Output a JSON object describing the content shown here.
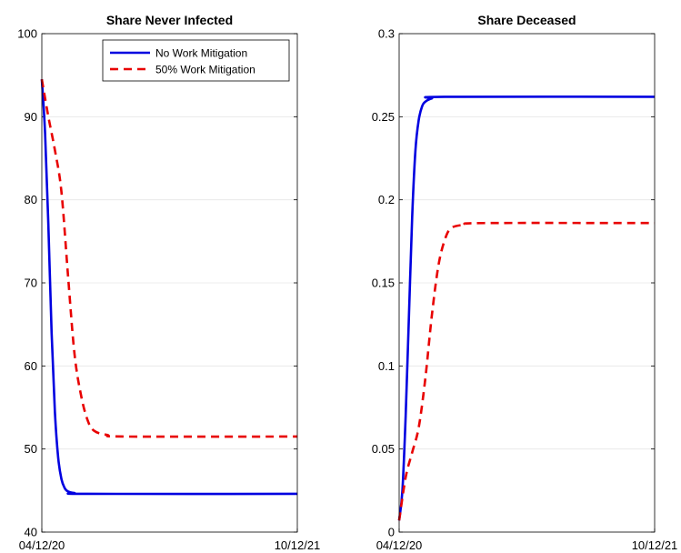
{
  "chart_data": [
    {
      "type": "line",
      "title": "Share Never Infected",
      "xlabel": "",
      "ylabel": "",
      "x_range": [
        "04/12/20",
        "10/12/21"
      ],
      "x_ticks": [
        "04/12/20",
        "10/12/21"
      ],
      "ylim": [
        40,
        100
      ],
      "y_ticks": [
        "40",
        "50",
        "60",
        "70",
        "80",
        "90",
        "100"
      ],
      "grid": "horizontal",
      "legend": "top-right",
      "series": [
        {
          "name": "No Work Mitigation",
          "color": "#0000e0",
          "style": "solid",
          "points": [
            [
              "04/12/20",
              94.5
            ],
            [
              "04/19/20",
              88.0
            ],
            [
              "04/26/20",
              77.0
            ],
            [
              "05/03/20",
              64.0
            ],
            [
              "05/10/20",
              54.5
            ],
            [
              "05/17/20",
              49.0
            ],
            [
              "05/24/20",
              46.4
            ],
            [
              "05/31/20",
              45.3
            ],
            [
              "06/07/20",
              44.9
            ],
            [
              "06/21/20",
              44.7
            ],
            [
              "07/19/20",
              44.6
            ],
            [
              "10/12/21",
              44.6
            ]
          ]
        },
        {
          "name": "50% Work Mitigation",
          "color": "#e80000",
          "style": "dashed",
          "points": [
            [
              "04/12/20",
              94.5
            ],
            [
              "04/26/20",
              90.0
            ],
            [
              "05/10/20",
              86.0
            ],
            [
              "05/24/20",
              81.0
            ],
            [
              "06/07/20",
              71.0
            ],
            [
              "06/21/20",
              61.5
            ],
            [
              "07/05/20",
              56.5
            ],
            [
              "07/19/20",
              53.5
            ],
            [
              "08/02/20",
              52.2
            ],
            [
              "08/30/20",
              51.7
            ],
            [
              "10/11/20",
              51.5
            ],
            [
              "10/12/21",
              51.5
            ]
          ]
        }
      ]
    },
    {
      "type": "line",
      "title": "Share Deceased",
      "xlabel": "",
      "ylabel": "",
      "x_range": [
        "04/12/20",
        "10/12/21"
      ],
      "x_ticks": [
        "04/12/20",
        "10/12/21"
      ],
      "ylim": [
        0,
        0.3
      ],
      "y_ticks": [
        "0",
        "0.05",
        "0.1",
        "0.15",
        "0.2",
        "0.25",
        "0.3"
      ],
      "grid": "horizontal",
      "legend": "none",
      "series": [
        {
          "name": "No Work Mitigation",
          "color": "#0000e0",
          "style": "solid",
          "points": [
            [
              "04/12/20",
              0.007
            ],
            [
              "04/19/20",
              0.025
            ],
            [
              "04/26/20",
              0.07
            ],
            [
              "05/03/20",
              0.13
            ],
            [
              "05/10/20",
              0.19
            ],
            [
              "05/17/20",
              0.23
            ],
            [
              "05/24/20",
              0.248
            ],
            [
              "05/31/20",
              0.256
            ],
            [
              "06/07/20",
              0.259
            ],
            [
              "06/21/20",
              0.261
            ],
            [
              "07/19/20",
              0.262
            ],
            [
              "10/12/21",
              0.262
            ]
          ]
        },
        {
          "name": "50% Work Mitigation",
          "color": "#e80000",
          "style": "dashed",
          "points": [
            [
              "04/12/20",
              0.007
            ],
            [
              "04/26/20",
              0.033
            ],
            [
              "05/10/20",
              0.048
            ],
            [
              "05/24/20",
              0.063
            ],
            [
              "06/07/20",
              0.092
            ],
            [
              "06/21/20",
              0.13
            ],
            [
              "07/05/20",
              0.16
            ],
            [
              "07/19/20",
              0.176
            ],
            [
              "08/02/20",
              0.183
            ],
            [
              "08/30/20",
              0.185
            ],
            [
              "10/11/20",
              0.186
            ],
            [
              "10/12/21",
              0.186
            ]
          ]
        }
      ]
    }
  ]
}
